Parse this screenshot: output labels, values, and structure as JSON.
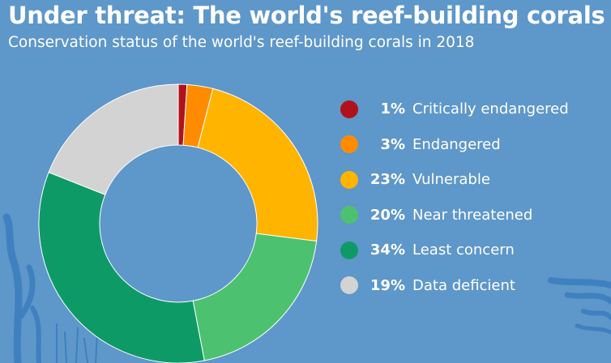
{
  "header": {
    "title": "Under threat: The world's reef-building corals",
    "subtitle": "Conservation status of the world's reef-building corals in 2018"
  },
  "colors": {
    "background": "#5e97c9",
    "decoration": "#3f80c0"
  },
  "chart_data": {
    "type": "pie",
    "title": "Under threat: The world's reef-building corals",
    "subtitle": "Conservation status of the world's reef-building corals in 2018",
    "donut": true,
    "legend_position": "right",
    "unit": "%",
    "slices": [
      {
        "label": "Critically endangered",
        "value": 1,
        "display": "1%",
        "color": "#b0121b"
      },
      {
        "label": "Endangered",
        "value": 3,
        "display": "3%",
        "color": "#ff8c00"
      },
      {
        "label": "Vulnerable",
        "value": 23,
        "display": "23%",
        "color": "#ffb400"
      },
      {
        "label": "Near threatened",
        "value": 20,
        "display": "20%",
        "color": "#4cc270"
      },
      {
        "label": "Least concern",
        "value": 34,
        "display": "34%",
        "color": "#0e9a67"
      },
      {
        "label": "Data deficient",
        "value": 19,
        "display": "19%",
        "color": "#d3d3d3"
      }
    ]
  }
}
